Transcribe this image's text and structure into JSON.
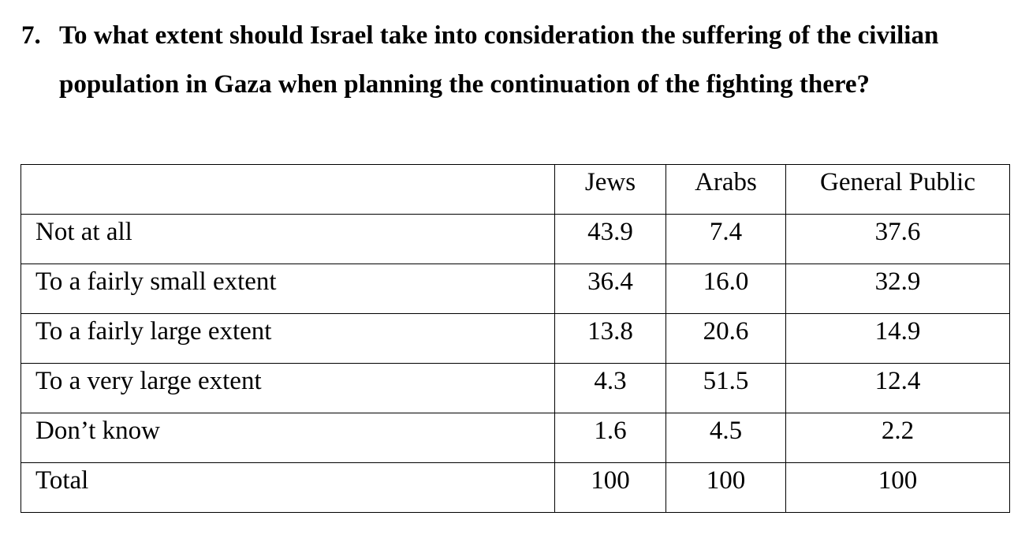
{
  "question": {
    "number": "7.",
    "text": "To what extent should Israel take into consideration the suffering of the civilian population in Gaza when planning the continuation of the fighting there?"
  },
  "table": {
    "headers": [
      "",
      "Jews",
      "Arabs",
      "General Public"
    ],
    "rows": [
      {
        "label": "Not at all",
        "values": [
          "43.9",
          "7.4",
          "37.6"
        ]
      },
      {
        "label": "To a fairly small extent",
        "values": [
          "36.4",
          "16.0",
          "32.9"
        ]
      },
      {
        "label": "To a fairly large extent",
        "values": [
          "13.8",
          "20.6",
          "14.9"
        ]
      },
      {
        "label": "To a very large extent",
        "values": [
          "4.3",
          "51.5",
          "12.4"
        ]
      },
      {
        "label": "Don’t know",
        "values": [
          "1.6",
          "4.5",
          "2.2"
        ]
      },
      {
        "label": "Total",
        "values": [
          "100",
          "100",
          "100"
        ]
      }
    ]
  }
}
